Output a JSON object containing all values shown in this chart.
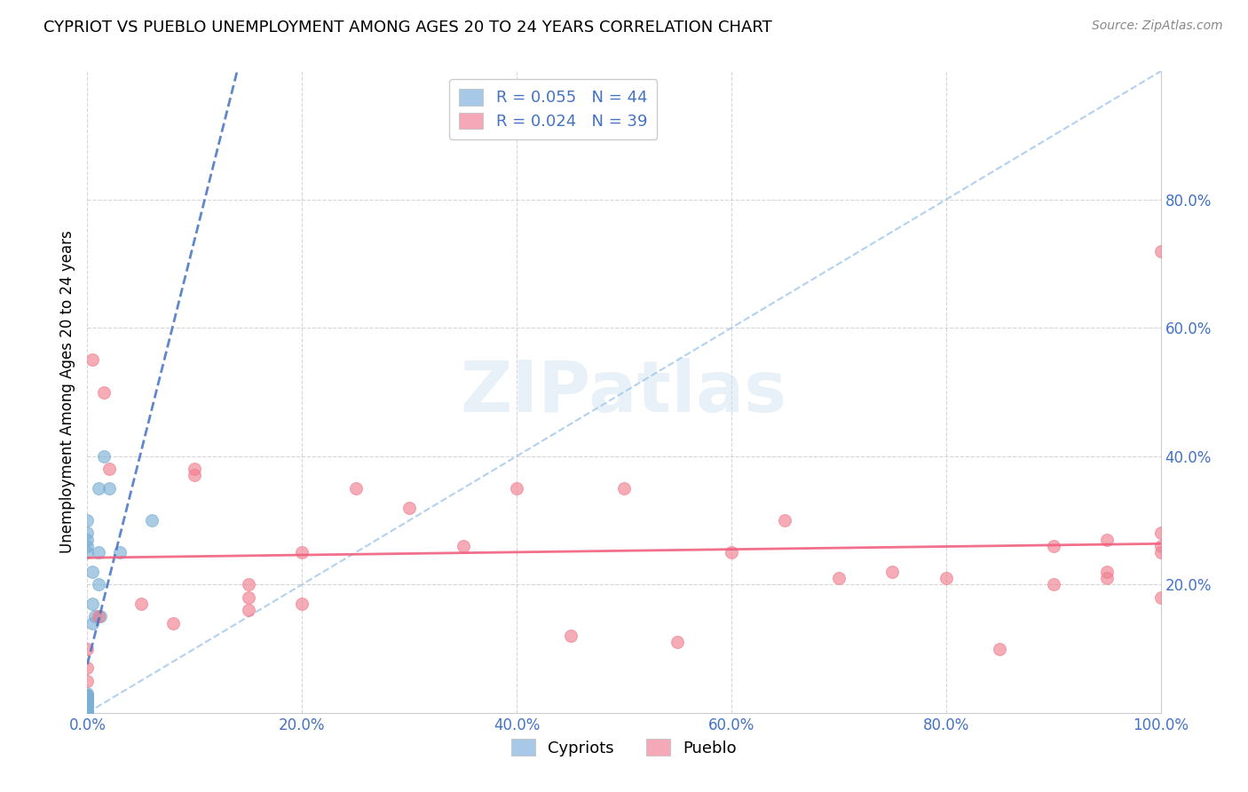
{
  "title": "CYPRIOT VS PUEBLO UNEMPLOYMENT AMONG AGES 20 TO 24 YEARS CORRELATION CHART",
  "source": "Source: ZipAtlas.com",
  "ylabel": "Unemployment Among Ages 20 to 24 years",
  "watermark": "ZIPatlas",
  "legend": {
    "cypriot_label": "Cypriots",
    "pueblo_label": "Pueblo",
    "cypriot_R": "R = 0.055",
    "cypriot_N": "N = 44",
    "pueblo_R": "R = 0.024",
    "pueblo_N": "N = 39",
    "cypriot_color": "#a8c8e8",
    "pueblo_color": "#f4a8b8"
  },
  "cypriot_x": [
    0.0,
    0.0,
    0.0,
    0.0,
    0.0,
    0.0,
    0.0,
    0.0,
    0.0,
    0.0,
    0.0,
    0.0,
    0.0,
    0.0,
    0.0,
    0.0,
    0.0,
    0.0,
    0.0,
    0.0,
    0.0,
    0.0,
    0.0,
    0.0,
    0.0,
    0.0,
    0.0,
    0.0,
    0.0,
    0.0,
    0.0,
    0.0,
    0.005,
    0.005,
    0.005,
    0.007,
    0.01,
    0.01,
    0.01,
    0.012,
    0.015,
    0.02,
    0.03,
    0.06
  ],
  "cypriot_y": [
    0.0,
    0.0,
    0.0,
    0.0,
    0.0,
    0.0,
    0.0,
    0.0,
    0.0,
    0.005,
    0.007,
    0.008,
    0.01,
    0.01,
    0.01,
    0.012,
    0.013,
    0.015,
    0.015,
    0.015,
    0.017,
    0.02,
    0.02,
    0.025,
    0.027,
    0.028,
    0.03,
    0.25,
    0.26,
    0.28,
    0.27,
    0.3,
    0.14,
    0.17,
    0.22,
    0.15,
    0.2,
    0.25,
    0.35,
    0.15,
    0.4,
    0.35,
    0.25,
    0.3
  ],
  "pueblo_x": [
    0.0,
    0.0,
    0.0,
    0.005,
    0.01,
    0.015,
    0.02,
    0.05,
    0.08,
    0.1,
    0.1,
    0.15,
    0.15,
    0.15,
    0.2,
    0.2,
    0.25,
    0.3,
    0.35,
    0.4,
    0.45,
    0.5,
    0.55,
    0.6,
    0.65,
    0.7,
    0.75,
    0.8,
    0.85,
    0.9,
    0.9,
    0.95,
    0.95,
    0.95,
    1.0,
    1.0,
    1.0,
    1.0,
    1.0
  ],
  "pueblo_y": [
    0.05,
    0.07,
    0.1,
    0.55,
    0.15,
    0.5,
    0.38,
    0.17,
    0.14,
    0.37,
    0.38,
    0.16,
    0.18,
    0.2,
    0.17,
    0.25,
    0.35,
    0.32,
    0.26,
    0.35,
    0.12,
    0.35,
    0.11,
    0.25,
    0.3,
    0.21,
    0.22,
    0.21,
    0.1,
    0.26,
    0.2,
    0.27,
    0.21,
    0.22,
    0.28,
    0.26,
    0.18,
    0.25,
    0.72
  ],
  "cypriot_color": "#7bafd4",
  "pueblo_color": "#f08090",
  "cypriot_trend_color": "#4472c4",
  "pueblo_trend_color": "#f06080",
  "diagonal_color": "#aaccee",
  "xlim": [
    0.0,
    1.0
  ],
  "ylim": [
    0.0,
    1.0
  ],
  "xticks": [
    0.0,
    0.2,
    0.4,
    0.6,
    0.8,
    1.0
  ],
  "yticks": [
    0.2,
    0.4,
    0.6,
    0.8
  ],
  "tick_color": "#4472c4",
  "background_color": "#ffffff",
  "grid_color": "#cccccc"
}
